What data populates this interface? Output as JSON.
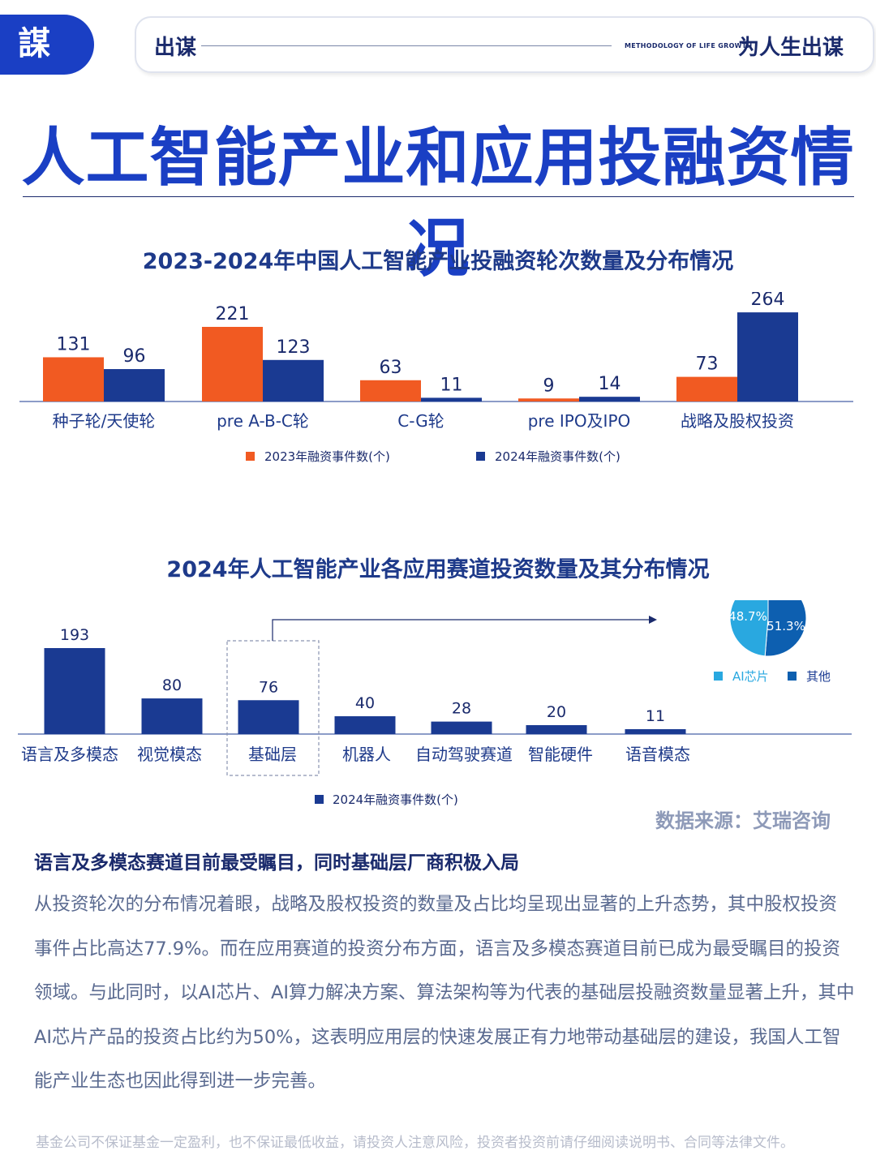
{
  "header": {
    "logo_text": "謀",
    "left_text": "出谋",
    "small_text": "METHODOLOGY OF LIFE GROWTH",
    "right_text": "为人生出谋"
  },
  "main_title": "人工智能产业和应用投融资情况",
  "colors": {
    "orange": "#f15a22",
    "navy": "#1a3a92",
    "pie_light": "#29a8e0",
    "pie_dark": "#0d5fb0"
  },
  "chart_data": [
    {
      "type": "bar",
      "title": "2023-2024年中国人工智能产业投融资轮次数量及分布情况",
      "categories": [
        "种子轮/天使轮",
        "pre A-B-C轮",
        "C-G轮",
        "pre IPO及IPO",
        "战略及股权投资"
      ],
      "series": [
        {
          "name": "2023年融资事件数(个)",
          "values": [
            131,
            221,
            63,
            9,
            73
          ]
        },
        {
          "name": "2024年融资事件数(个)",
          "values": [
            96,
            123,
            11,
            14,
            264
          ]
        }
      ],
      "legend": "bottom"
    },
    {
      "type": "bar",
      "title": "2024年人工智能产业各应用赛道投资数量及其分布情况",
      "categories": [
        "语言及多模态",
        "视觉模态",
        "基础层",
        "机器人",
        "自动驾驶赛道",
        "智能硬件",
        "语音模态"
      ],
      "series": [
        {
          "name": "2024年融资事件数(个)",
          "values": [
            193,
            80,
            76,
            40,
            28,
            20,
            11
          ]
        }
      ],
      "highlight": "基础层",
      "legend": "bottom"
    },
    {
      "type": "pie",
      "labels": [
        "AI芯片",
        "其他"
      ],
      "values": [
        48.7,
        51.3
      ],
      "value_labels": [
        "48.7%",
        "51.3%"
      ],
      "legend": "bottom"
    }
  ],
  "source": "数据来源：艾瑞咨询",
  "subhead": "语言及多模态赛道目前最受瞩目，同时基础层厂商积极入局",
  "body": "从投资轮次的分布情况着眼，战略及股权投资的数量及占比均呈现出显著的上升态势，其中股权投资事件占比高达77.9%。而在应用赛道的投资分布方面，语言及多模态赛道目前已成为最受瞩目的投资领域。与此同时，以AI芯片、AI算力解决方案、算法架构等为代表的基础层投融资数量显著上升，其中AI芯片产品的投资占比约为50%，这表明应用层的快速发展正有力地带动基础层的建设，我国人工智能产业生态也因此得到进一步完善。",
  "disclaimer": "基金公司不保证基金一定盈利，也不保证最低收益，请投资人注意风险，投资者投资前请仔细阅读说明书、合同等法律文件。"
}
